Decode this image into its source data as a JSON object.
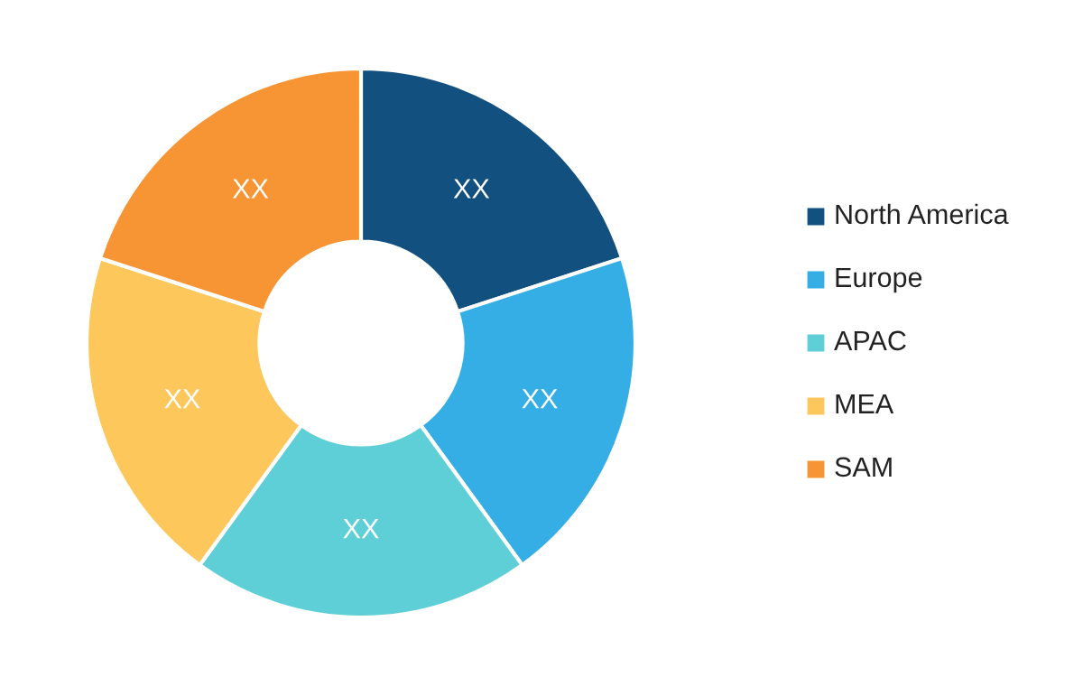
{
  "chart_data": {
    "type": "donut",
    "categories": [
      "North America",
      "Europe",
      "APAC",
      "MEA",
      "SAM"
    ],
    "values": [
      20,
      20,
      20,
      20,
      20
    ],
    "value_labels": [
      "XX",
      "XX",
      "XX",
      "XX",
      "XX"
    ],
    "colors": [
      "#11507f",
      "#35aee6",
      "#5fcfd7",
      "#fec75c",
      "#f79433"
    ],
    "legend": "right"
  }
}
